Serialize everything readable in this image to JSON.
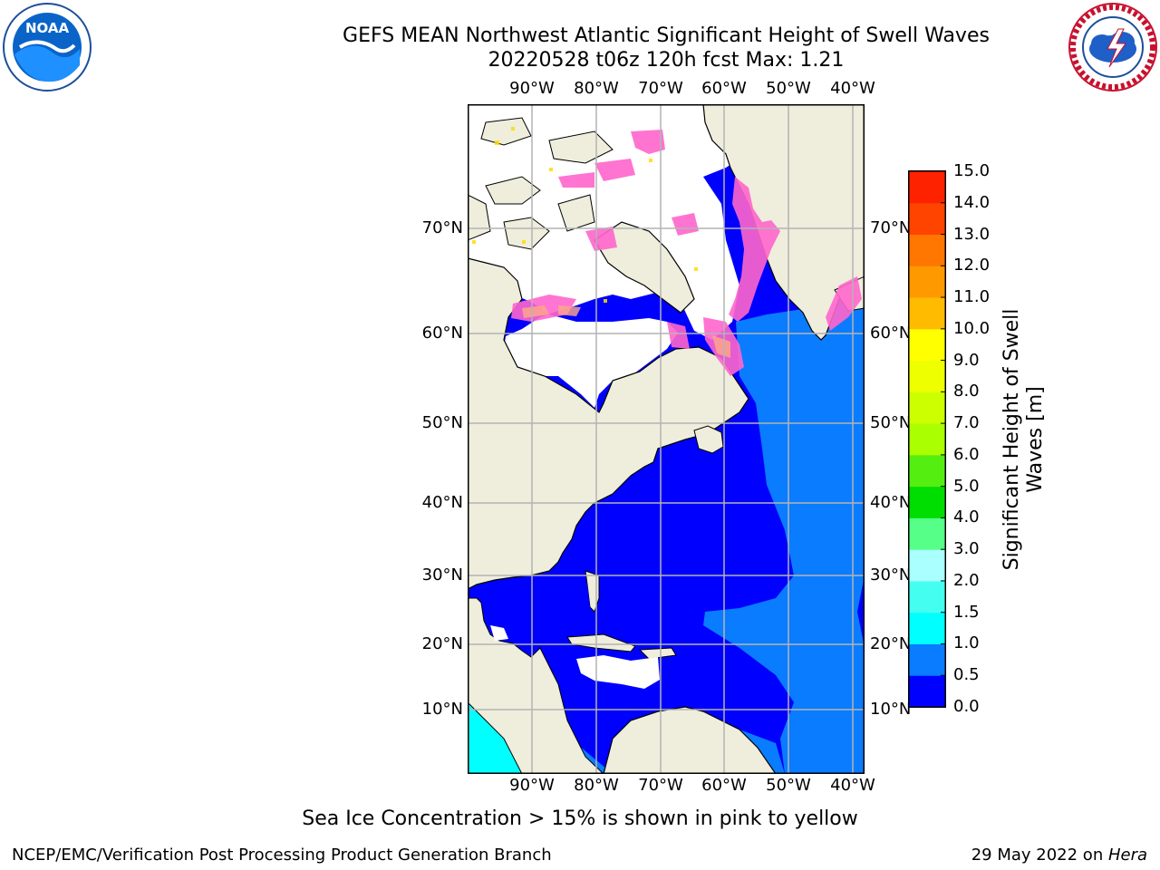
{
  "title": {
    "line1": "GEFS MEAN Northwest Atlantic Significant Height of Swell Waves",
    "line2": "20220528 t06z 120h fcst   Max: 1.21"
  },
  "logos": {
    "left": {
      "icon": "noaa-logo-icon",
      "text": "NOAA"
    },
    "right": {
      "icon": "national-weather-service-logo-icon",
      "text": "NATIONAL WEATHER SERVICE"
    }
  },
  "map": {
    "lon_labels": [
      "90°W",
      "80°W",
      "70°W",
      "60°W",
      "50°W",
      "40°W"
    ],
    "lat_labels": [
      "70°N",
      "60°N",
      "50°N",
      "40°N",
      "30°N",
      "20°N",
      "10°N"
    ],
    "colors": {
      "land": "#efeddc",
      "ice_sea": "#ffffff",
      "coast": "#000000",
      "grid": "#b4b4b4",
      "ice_pink": "#ff66cc",
      "ice_yellow": "#ffdd00"
    }
  },
  "colorbar": {
    "label_line1": "Significant Height of Swell",
    "label_line2": "Waves [m]",
    "ticks": [
      "0.0",
      "0.5",
      "1.0",
      "1.5",
      "2.0",
      "3.0",
      "4.0",
      "5.0",
      "6.0",
      "7.0",
      "8.0",
      "9.0",
      "10.0",
      "11.0",
      "12.0",
      "13.0",
      "14.0",
      "15.0"
    ],
    "colors": [
      "#0000ff",
      "#0a7cff",
      "#00ffff",
      "#44fff0",
      "#aaffff",
      "#55ff88",
      "#00dd00",
      "#55ee11",
      "#aaff00",
      "#ccff00",
      "#eeff00",
      "#ffff00",
      "#ffbb00",
      "#ff9900",
      "#ff7700",
      "#ff4400",
      "#ff2200",
      "#ff0000"
    ]
  },
  "note": "Sea Ice Concentration > 15% is shown in pink to yellow",
  "footer": {
    "left": "NCEP/EMC/Verification Post Processing Product Generation Branch",
    "right_date": "29 May 2022 on ",
    "right_host": "Hera"
  }
}
